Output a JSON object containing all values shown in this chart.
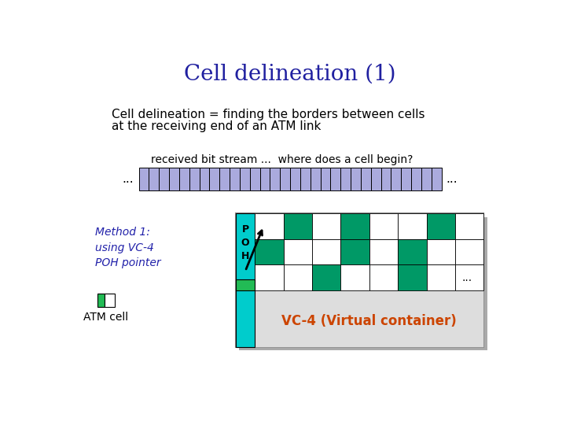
{
  "title": "Cell delineation (1)",
  "title_color": "#2020A0",
  "title_fontsize": 20,
  "body_text_line1": "Cell delineation = finding the borders between cells",
  "body_text_line2": "at the receiving end of an ATM link",
  "subtitle_text": "received bit stream ...  where does a cell begin?",
  "stream_bar_color": "#AAAADD",
  "stream_bar_outline": "#000000",
  "stream_num_cells": 30,
  "method_text": "Method 1:\nusing VC-4\nPOH pointer",
  "method_color": "#2222AA",
  "atm_legend_label": "ATM cell",
  "vc4_label": "VC-4 (Virtual container)",
  "vc4_label_color": "#CC4400",
  "poh_color": "#00CCCC",
  "poh_label": "P\nO\nH",
  "green_color": "#22BB55",
  "white_color": "#FFFFFF",
  "teal_color": "#009966",
  "background_color": "#FFFFFF",
  "shadow_color": "#AAAAAA",
  "grid_color": "#DDDDDD"
}
